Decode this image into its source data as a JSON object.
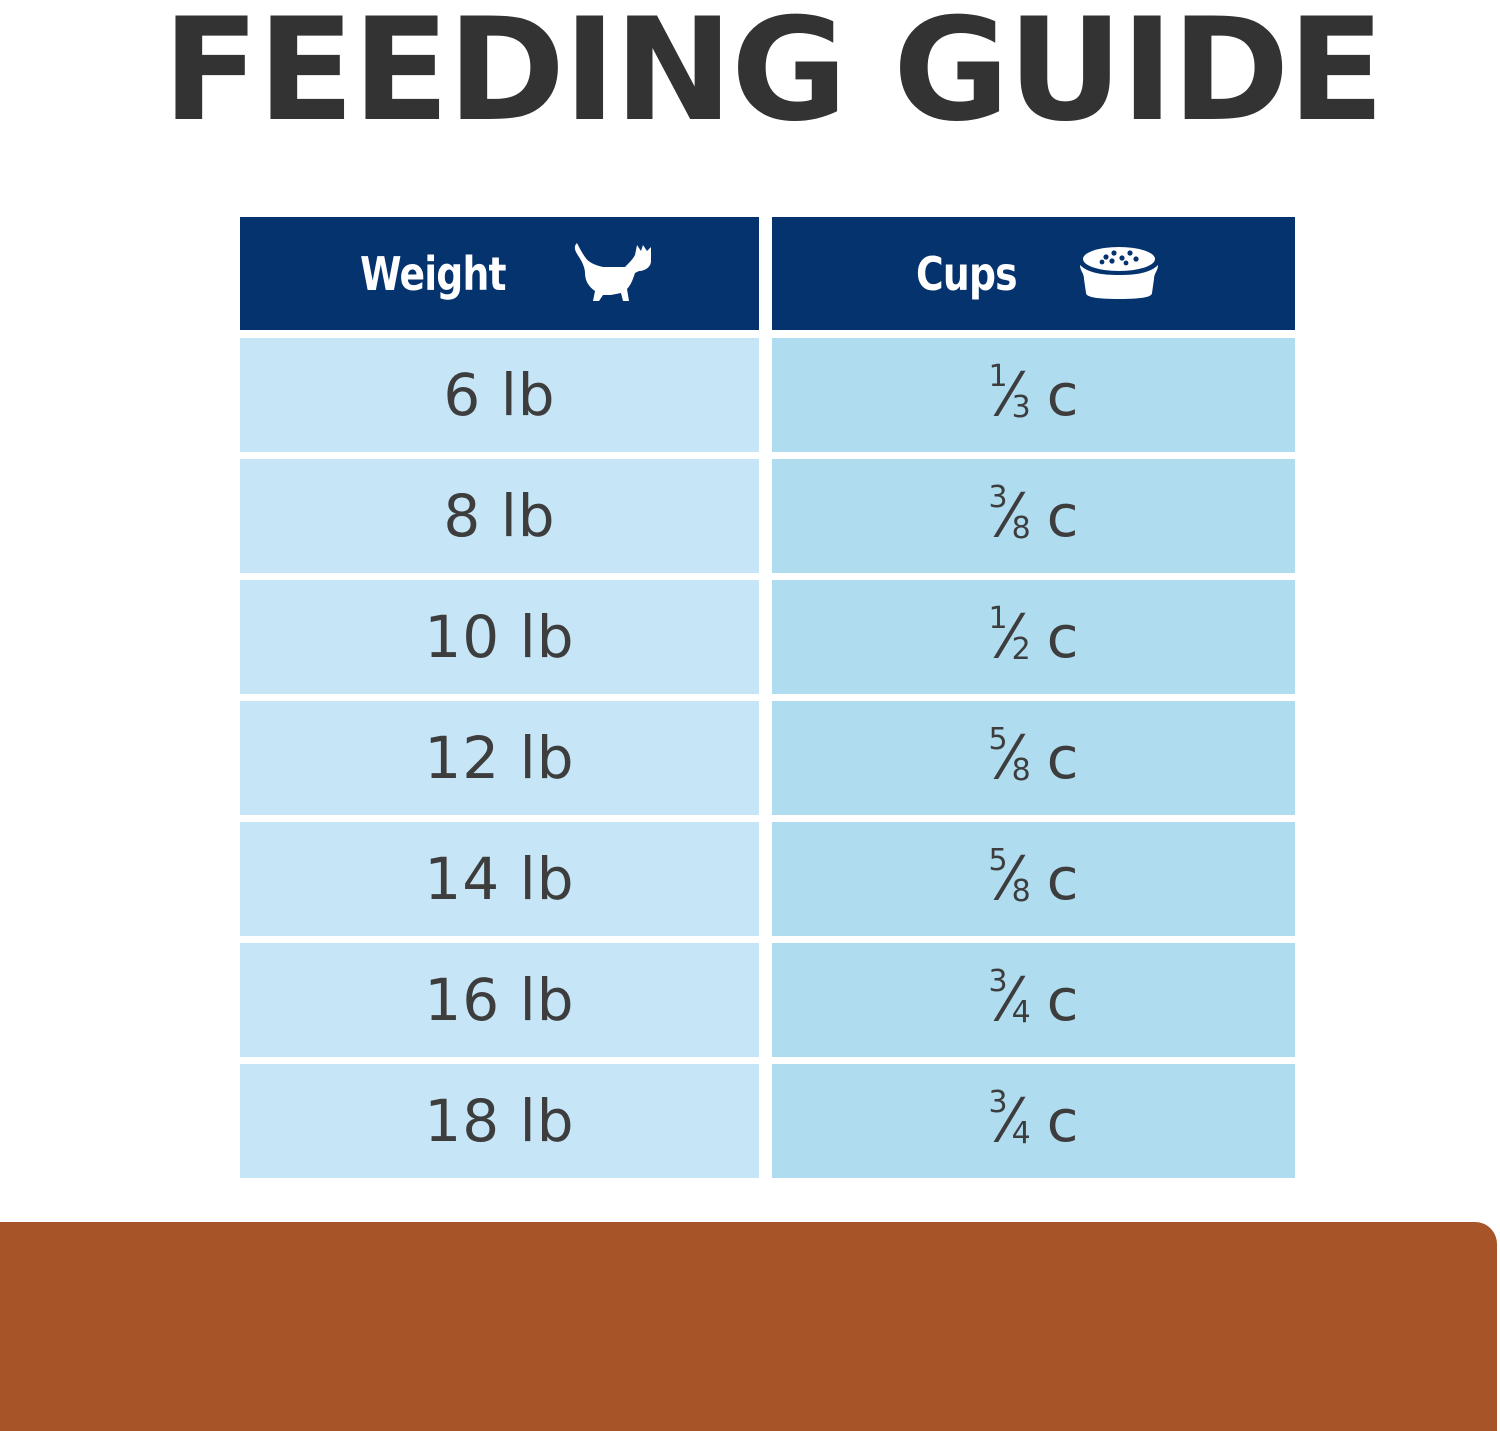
{
  "title": "FEEDING GUIDE",
  "table": {
    "headers": {
      "weight": {
        "label": "Weight",
        "icon": "cat-icon"
      },
      "cups": {
        "label": "Cups",
        "icon": "food-bowl-icon"
      }
    },
    "rows": [
      {
        "weight": "6 lb",
        "cups": {
          "numerator": "1",
          "denominator": "3",
          "unit": "c"
        }
      },
      {
        "weight": "8 lb",
        "cups": {
          "numerator": "3",
          "denominator": "8",
          "unit": "c"
        }
      },
      {
        "weight": "10 lb",
        "cups": {
          "numerator": "1",
          "denominator": "2",
          "unit": "c"
        }
      },
      {
        "weight": "12 lb",
        "cups": {
          "numerator": "5",
          "denominator": "8",
          "unit": "c"
        }
      },
      {
        "weight": "14 lb",
        "cups": {
          "numerator": "5",
          "denominator": "8",
          "unit": "c"
        }
      },
      {
        "weight": "16 lb",
        "cups": {
          "numerator": "3",
          "denominator": "4",
          "unit": "c"
        }
      },
      {
        "weight": "18 lb",
        "cups": {
          "numerator": "3",
          "denominator": "4",
          "unit": "c"
        }
      }
    ]
  },
  "colors": {
    "title": "#333333",
    "header_bg": "#04336e",
    "row_left_bg": "#c6e5f6",
    "row_right_bg": "#b0dcf0",
    "value_text": "#3d3d3d",
    "bottom_band": "#a65428"
  }
}
